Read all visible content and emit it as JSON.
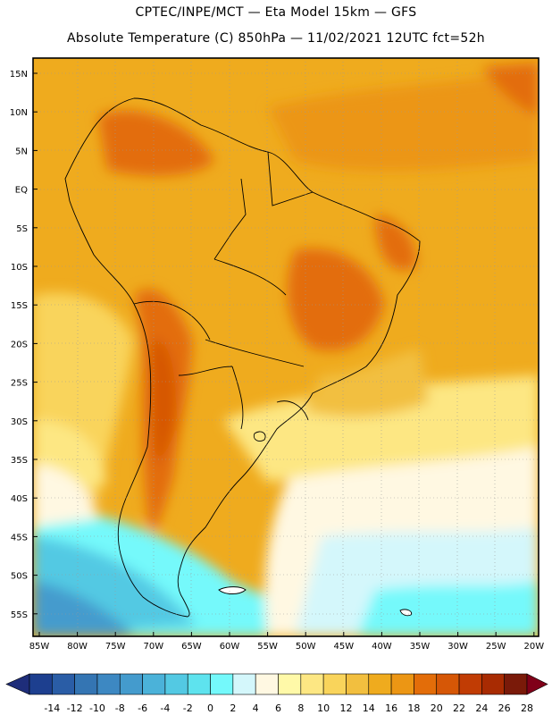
{
  "header": {
    "line1": "CPTEC/INPE/MCT —  Eta Model 15km — GFS",
    "line2": "Absolute Temperature (C) 850hPa — 11/02/2021 12UTC fct=52h"
  },
  "axes": {
    "lat_labels": [
      "15N",
      "10N",
      "5N",
      "EQ",
      "5S",
      "10S",
      "15S",
      "20S",
      "25S",
      "30S",
      "35S",
      "40S",
      "45S",
      "50S",
      "55S"
    ],
    "lon_labels": [
      "85W",
      "80W",
      "75W",
      "70W",
      "65W",
      "60W",
      "55W",
      "50W",
      "45W",
      "40W",
      "35W",
      "30W",
      "25W",
      "20W"
    ]
  },
  "colorbar": {
    "labels": [
      "-14",
      "-12",
      "-10",
      "-8",
      "-6",
      "-4",
      "-2",
      "0",
      "2",
      "4",
      "6",
      "8",
      "10",
      "12",
      "14",
      "16",
      "18",
      "20",
      "22",
      "24",
      "26",
      "28"
    ],
    "colors": [
      "#1d3f8f",
      "#2a5da6",
      "#3475b3",
      "#3d88c2",
      "#449bcd",
      "#4bb2d9",
      "#53c9e3",
      "#5ee3ee",
      "#74f9fb",
      "#d4f7fb",
      "#fff8e2",
      "#fff9a8",
      "#fde783",
      "#f9d45b",
      "#f2bf3f",
      "#efab1e",
      "#ec9614",
      "#e36d09",
      "#d65706",
      "#c13c04",
      "#a82b02",
      "#7a1a09"
    ],
    "under_color": "#1e2d7a",
    "over_color": "#800019"
  }
}
